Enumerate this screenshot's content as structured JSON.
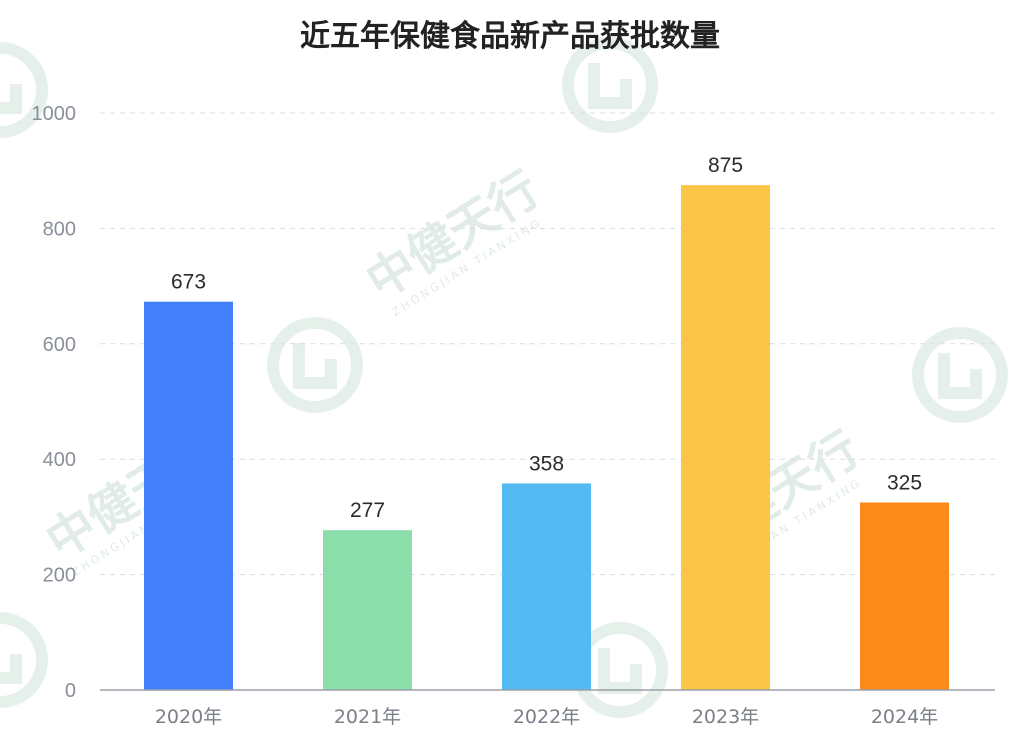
{
  "watermark": {
    "text": "中健天行",
    "subtext": "ZHONGJIAN TIANXING"
  },
  "chart_data": {
    "type": "bar",
    "title": "近五年保健食品新产品获批数量",
    "xlabel": "",
    "ylabel": "",
    "categories": [
      "2020年",
      "2021年",
      "2022年",
      "2023年",
      "2024年"
    ],
    "values": [
      673,
      277,
      358,
      875,
      325
    ],
    "data_labels": [
      "673",
      "277",
      "358",
      "875",
      "325"
    ],
    "colors": [
      "#4480fb",
      "#8bdeaa",
      "#53baf3",
      "#fdc548",
      "#fc8a1a"
    ],
    "ylim": [
      0,
      1000
    ],
    "yticks": [
      0,
      200,
      400,
      600,
      800,
      1000
    ],
    "grid": true,
    "grid_style": "dashed",
    "legend": "none"
  }
}
